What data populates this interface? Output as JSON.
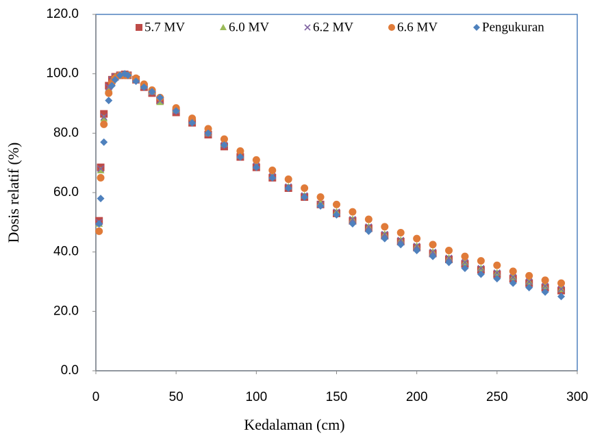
{
  "chart_data": {
    "type": "scatter",
    "xlabel": "Kedalaman (cm)",
    "ylabel": "Dosis relatif (%)",
    "x": [
      2,
      3,
      5,
      8,
      10,
      12,
      15,
      18,
      20,
      25,
      30,
      35,
      40,
      50,
      60,
      70,
      80,
      90,
      100,
      110,
      120,
      130,
      140,
      150,
      160,
      170,
      180,
      190,
      200,
      210,
      220,
      230,
      240,
      250,
      260,
      270,
      280,
      290
    ],
    "series": [
      {
        "name": "5.7 MV",
        "color": "#be4b48",
        "marker": "square",
        "values": [
          50.5,
          68.5,
          86.5,
          96,
          98,
          99,
          99.5,
          99.8,
          99.5,
          98,
          95.5,
          93.5,
          91,
          87,
          83.5,
          79.5,
          75.5,
          72,
          68.5,
          65,
          61.5,
          58.5,
          56,
          53,
          50.5,
          48,
          45.5,
          43.5,
          41.5,
          39.5,
          37.5,
          36,
          34,
          32.5,
          31,
          29.5,
          28,
          27
        ]
      },
      {
        "name": "6.0 MV",
        "color": "#9bbb59",
        "marker": "triangle",
        "values": [
          49.5,
          67.5,
          85,
          95,
          98,
          99,
          99.5,
          99.8,
          99.5,
          98,
          96,
          94,
          90.5,
          88,
          84,
          80,
          76.5,
          72.5,
          69,
          65.5,
          62,
          59,
          56.5,
          53.5,
          51,
          48.5,
          46,
          44,
          42,
          40,
          38,
          36.5,
          34.5,
          33,
          31.5,
          30,
          28.5,
          27.5
        ]
      },
      {
        "name": "6.2 MV",
        "color": "#8064a2",
        "marker": "cross",
        "values": [
          50,
          68,
          85.5,
          95.5,
          98,
          99,
          99.5,
          99.8,
          99.5,
          98,
          95.8,
          93.8,
          91,
          87.5,
          84,
          80,
          76,
          72.5,
          69,
          65.5,
          62,
          59,
          56,
          53.5,
          51,
          48.5,
          46,
          44,
          42,
          40,
          38,
          36.5,
          34.5,
          33,
          31.5,
          30,
          28.5,
          27.5
        ]
      },
      {
        "name": "6.6 MV",
        "color": "#e07b39",
        "marker": "circle",
        "values": [
          47,
          65,
          83,
          93.5,
          97,
          98.5,
          99.5,
          99.5,
          99.5,
          98.5,
          96.5,
          94.5,
          92,
          88.5,
          85,
          81.5,
          78,
          74,
          71,
          67.5,
          64.5,
          61.5,
          58.5,
          56,
          53.5,
          51,
          48.5,
          46.5,
          44.5,
          42.5,
          40.5,
          38.5,
          37,
          35.5,
          33.5,
          32,
          30.5,
          29.5
        ]
      },
      {
        "name": "Pengukuran",
        "color": "#4f81bd",
        "marker": "diamond",
        "values": [
          49.5,
          58,
          77,
          91,
          96,
          98,
          99.5,
          100,
          99.5,
          97.5,
          95.5,
          94,
          92,
          87.5,
          83.5,
          80,
          76,
          72,
          68.5,
          65,
          61.5,
          58.5,
          55.5,
          52.5,
          49.5,
          47,
          44.5,
          42.5,
          40.5,
          38.5,
          36.5,
          34.5,
          32.5,
          31,
          29.5,
          28,
          26.5,
          25
        ]
      }
    ],
    "xlim": [
      0,
      300
    ],
    "xticks": [
      0,
      50,
      100,
      150,
      200,
      250,
      300
    ],
    "ylim": [
      0,
      120
    ],
    "yticks": [
      {
        "value": 0,
        "label": "0.0"
      },
      {
        "value": 20,
        "label": "20.0"
      },
      {
        "value": 40,
        "label": "40.0"
      },
      {
        "value": 60,
        "label": "60.0"
      },
      {
        "value": 80,
        "label": "80.0"
      },
      {
        "value": 100,
        "label": "100.0"
      },
      {
        "value": 120,
        "label": "120.0"
      }
    ],
    "grid": false,
    "legend": "top"
  }
}
